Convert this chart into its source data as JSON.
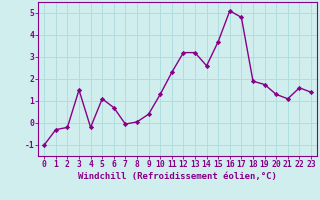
{
  "x": [
    0,
    1,
    2,
    3,
    4,
    5,
    6,
    7,
    8,
    9,
    10,
    11,
    12,
    13,
    14,
    15,
    16,
    17,
    18,
    19,
    20,
    21,
    22,
    23
  ],
  "y": [
    -1.0,
    -0.3,
    -0.2,
    1.5,
    -0.2,
    1.1,
    0.7,
    -0.05,
    0.05,
    0.4,
    1.3,
    2.3,
    3.2,
    3.2,
    2.6,
    3.7,
    5.1,
    4.8,
    1.9,
    1.75,
    1.3,
    1.1,
    1.6,
    1.4
  ],
  "line_color": "#880088",
  "marker": "D",
  "marker_size": 2.2,
  "background_color": "#d0eeee",
  "grid_color": "#b0dddd",
  "xlabel": "Windchill (Refroidissement éolien,°C)",
  "ylim": [
    -1.5,
    5.5
  ],
  "xlim": [
    -0.5,
    23.5
  ],
  "yticks": [
    -1,
    0,
    1,
    2,
    3,
    4,
    5
  ],
  "xticks": [
    0,
    1,
    2,
    3,
    4,
    5,
    6,
    7,
    8,
    9,
    10,
    11,
    12,
    13,
    14,
    15,
    16,
    17,
    18,
    19,
    20,
    21,
    22,
    23
  ],
  "xlabel_fontsize": 6.5,
  "tick_fontsize": 5.8,
  "line_width": 1.0
}
